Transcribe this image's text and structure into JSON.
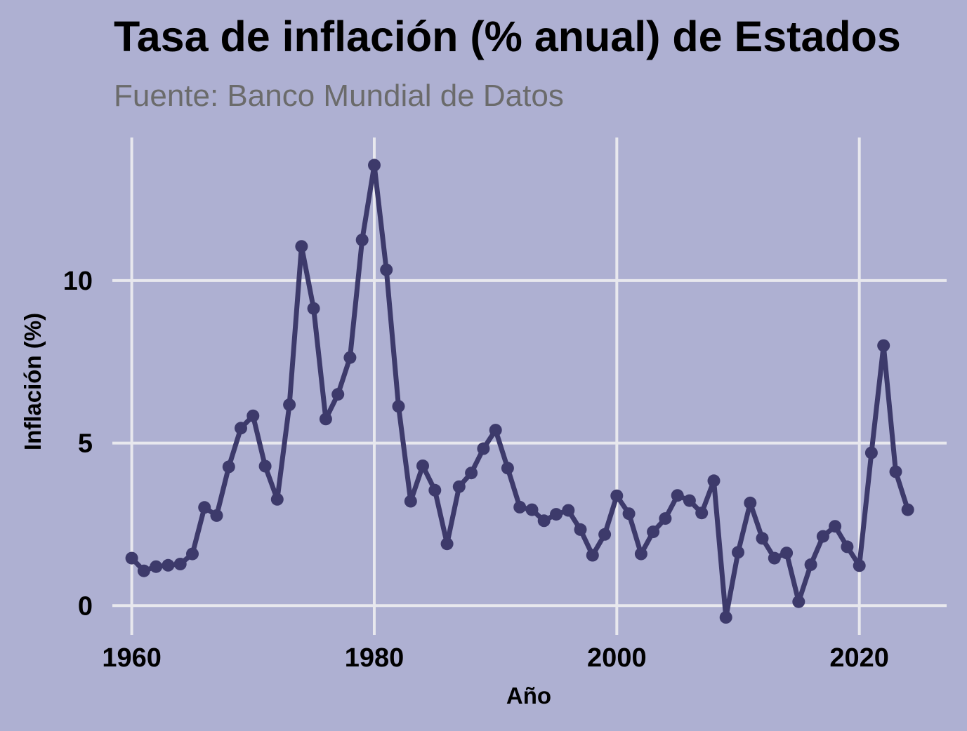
{
  "chart_data": {
    "type": "line",
    "title": "Tasa de inflación (% anual) de Estados",
    "subtitle": "Fuente: Banco Mundial de Datos",
    "xlabel": "Año",
    "ylabel": "Inflación (%)",
    "xlim": [
      1958.4,
      2027.2
    ],
    "ylim": [
      -0.9,
      14.4
    ],
    "x_ticks": [
      1960,
      1980,
      2000,
      2020
    ],
    "y_ticks": [
      0,
      5,
      10
    ],
    "grid": true,
    "line_color": "#3d3a6b",
    "background_color": "#aeb0d2",
    "grid_color": "#e8e8ee",
    "series": [
      {
        "x": [
          1960,
          1961,
          1962,
          1963,
          1964,
          1965,
          1966,
          1967,
          1968,
          1969,
          1970,
          1971,
          1972,
          1973,
          1974,
          1975,
          1976,
          1977,
          1978,
          1979,
          1980,
          1981,
          1982,
          1983,
          1984,
          1985,
          1986,
          1987,
          1988,
          1989,
          1990,
          1991,
          1992,
          1993,
          1994,
          1995,
          1996,
          1997,
          1998,
          1999,
          2000,
          2001,
          2002,
          2003,
          2004,
          2005,
          2006,
          2007,
          2008,
          2009,
          2010,
          2011,
          2012,
          2013,
          2014,
          2015,
          2016,
          2017,
          2018,
          2019,
          2020,
          2021,
          2022,
          2023,
          2024
        ],
        "values": [
          1.46,
          1.07,
          1.2,
          1.24,
          1.28,
          1.59,
          3.02,
          2.77,
          4.27,
          5.46,
          5.84,
          4.29,
          3.27,
          6.18,
          11.05,
          9.14,
          5.74,
          6.5,
          7.63,
          11.25,
          13.55,
          10.33,
          6.13,
          3.21,
          4.3,
          3.55,
          1.9,
          3.66,
          4.08,
          4.83,
          5.4,
          4.23,
          3.03,
          2.95,
          2.61,
          2.81,
          2.93,
          2.34,
          1.55,
          2.19,
          3.38,
          2.83,
          1.59,
          2.27,
          2.68,
          3.39,
          3.23,
          2.85,
          3.84,
          -0.36,
          1.64,
          3.16,
          2.07,
          1.46,
          1.62,
          0.12,
          1.26,
          2.13,
          2.44,
          1.81,
          1.23,
          4.7,
          8.0,
          4.12,
          2.95
        ]
      }
    ]
  }
}
